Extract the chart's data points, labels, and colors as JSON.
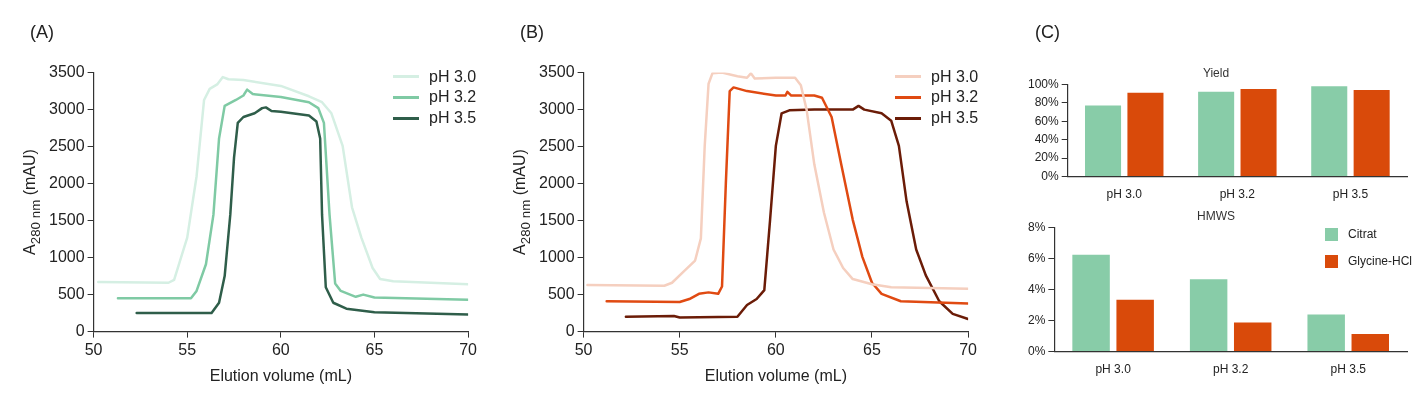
{
  "chart_data": [
    {
      "type": "line",
      "annotations": [
        "(A)"
      ],
      "xlabel": "Elution volume (mL)",
      "ylabel": "A$_{280 nm}$ (mAU)",
      "xlim": [
        50,
        70
      ],
      "xticks": [
        50,
        55,
        60,
        65,
        70
      ],
      "ylim": [
        0,
        3500
      ],
      "yticks": [
        0,
        500,
        1000,
        1500,
        2000,
        2500,
        3000,
        3500
      ],
      "grid": false,
      "legend": "top right",
      "series": [
        {
          "name": "pH 3.0",
          "color": "#d5efe3",
          "x": [
            50.25,
            54.0,
            54.3,
            55.0,
            55.5,
            55.9,
            56.2,
            56.6,
            56.9,
            57.2,
            58,
            60,
            61.5,
            62.2,
            62.7,
            63.3,
            63.8,
            64.3,
            64.9,
            65.3,
            66,
            70
          ],
          "values": [
            670,
            660,
            700,
            1270,
            2100,
            3130,
            3280,
            3340,
            3440,
            3410,
            3400,
            3320,
            3180,
            3100,
            2950,
            2510,
            1680,
            1270,
            860,
            710,
            680,
            640
          ]
        },
        {
          "name": "pH 3.2",
          "color": "#7fcaa4",
          "x": [
            51.3,
            55.2,
            55.5,
            56.0,
            56.4,
            56.7,
            57.0,
            57.6,
            58.0,
            58.2,
            58.5,
            60,
            61.5,
            62.0,
            62.3,
            62.6,
            62.9,
            63.2,
            64.0,
            64.4,
            65,
            70
          ],
          "values": [
            450,
            450,
            550,
            910,
            1580,
            2610,
            3050,
            3130,
            3190,
            3270,
            3210,
            3170,
            3100,
            3020,
            2820,
            1580,
            650,
            550,
            470,
            500,
            460,
            430
          ]
        },
        {
          "name": "pH 3.5",
          "color": "#2f5e4a",
          "x": [
            52.3,
            56.3,
            56.7,
            57.0,
            57.3,
            57.5,
            57.7,
            58.0,
            58.6,
            59.0,
            59.2,
            59.5,
            60,
            61.5,
            61.9,
            62.1,
            62.2,
            62.4,
            62.8,
            63.5,
            65,
            70
          ],
          "values": [
            250,
            250,
            390,
            750,
            1580,
            2350,
            2820,
            2900,
            2950,
            3020,
            3030,
            2980,
            2970,
            2920,
            2840,
            2610,
            1580,
            600,
            390,
            310,
            260,
            230
          ]
        }
      ]
    },
    {
      "type": "line",
      "annotations": [
        "(B)"
      ],
      "xlabel": "Elution volume (mL)",
      "ylabel": "A$_{280 nm}$ (mAU)",
      "xlim": [
        50,
        70
      ],
      "xticks": [
        50,
        55,
        60,
        65,
        70
      ],
      "ylim": [
        0,
        3500
      ],
      "yticks": [
        0,
        500,
        1000,
        1500,
        2000,
        2500,
        3000,
        3500
      ],
      "grid": false,
      "legend": "top right",
      "series": [
        {
          "name": "pH 3.0",
          "color": "#f5cfbf",
          "x": [
            50.2,
            54.2,
            54.6,
            55.2,
            55.8,
            56.1,
            56.3,
            56.5,
            56.7,
            57.2,
            58.0,
            58.5,
            58.7,
            58.9,
            60,
            61.0,
            61.3,
            61.6,
            62,
            62.5,
            63,
            63.5,
            64,
            65,
            66,
            70
          ],
          "values": [
            630,
            620,
            660,
            810,
            960,
            1260,
            2510,
            3350,
            3490,
            3500,
            3450,
            3430,
            3490,
            3420,
            3430,
            3430,
            3330,
            3000,
            2260,
            1610,
            1110,
            860,
            710,
            640,
            600,
            580
          ]
        },
        {
          "name": "pH 3.2",
          "color": "#e04a12",
          "x": [
            51.2,
            55.0,
            55.5,
            56.0,
            56.5,
            57.0,
            57.2,
            57.4,
            57.6,
            57.8,
            58.5,
            60,
            60.5,
            60.6,
            60.8,
            62,
            62.4,
            62.9,
            63.4,
            64,
            64.5,
            65,
            65.5,
            66.5,
            70
          ],
          "values": [
            410,
            400,
            440,
            510,
            530,
            510,
            610,
            2010,
            3250,
            3300,
            3250,
            3190,
            3190,
            3240,
            3190,
            3190,
            3160,
            2900,
            2260,
            1510,
            1010,
            660,
            510,
            410,
            380
          ]
        },
        {
          "name": "pH 3.5",
          "color": "#6b1c07",
          "x": [
            52.2,
            54.7,
            55,
            58.0,
            58.5,
            59,
            59.4,
            59.7,
            60.0,
            60.3,
            60.7,
            62,
            64,
            64.3,
            64.6,
            65.5,
            66.0,
            66.4,
            66.8,
            67.3,
            67.8,
            68.5,
            69.2,
            70
          ],
          "values": [
            200,
            210,
            190,
            200,
            360,
            440,
            560,
            1510,
            2510,
            2950,
            2990,
            3000,
            3000,
            3050,
            3000,
            2950,
            2850,
            2510,
            1760,
            1110,
            760,
            410,
            240,
            170
          ]
        }
      ]
    },
    {
      "type": "bar",
      "annotations": [
        "(C)"
      ],
      "title": "Yield",
      "categories": [
        "pH 3.0",
        "pH 3.2",
        "pH 3.5"
      ],
      "ylim": [
        0,
        100
      ],
      "yticks": [
        {
          "value": 0,
          "label": "0%"
        },
        {
          "value": 20,
          "label": "20%"
        },
        {
          "value": 40,
          "label": "40%"
        },
        {
          "value": 60,
          "label": "60%"
        },
        {
          "value": 80,
          "label": "80%"
        },
        {
          "value": 100,
          "label": "100%"
        }
      ],
      "grid": false,
      "series": [
        {
          "color": "#88cca8",
          "values": [
            77,
            92,
            98
          ]
        },
        {
          "color": "#d94a0a",
          "values": [
            91,
            95,
            94
          ]
        }
      ]
    },
    {
      "type": "bar",
      "title": "HMWS",
      "categories": [
        "pH 3.0",
        "pH 3.2",
        "pH 3.5"
      ],
      "ylim": [
        0,
        8
      ],
      "yticks": [
        {
          "value": 0,
          "label": "0%"
        },
        {
          "value": 2,
          "label": "2%"
        },
        {
          "value": 4,
          "label": "4%"
        },
        {
          "value": 6,
          "label": "6%"
        },
        {
          "value": 8,
          "label": "8%"
        }
      ],
      "grid": false,
      "legend": "top right",
      "series": [
        {
          "name": "Citrat",
          "color": "#88cca8",
          "values": [
            6.24,
            4.66,
            2.39
          ]
        },
        {
          "name": "Glycine-HCl",
          "color": "#d94a0a",
          "values": [
            3.34,
            1.88,
            1.14
          ]
        }
      ]
    }
  ]
}
